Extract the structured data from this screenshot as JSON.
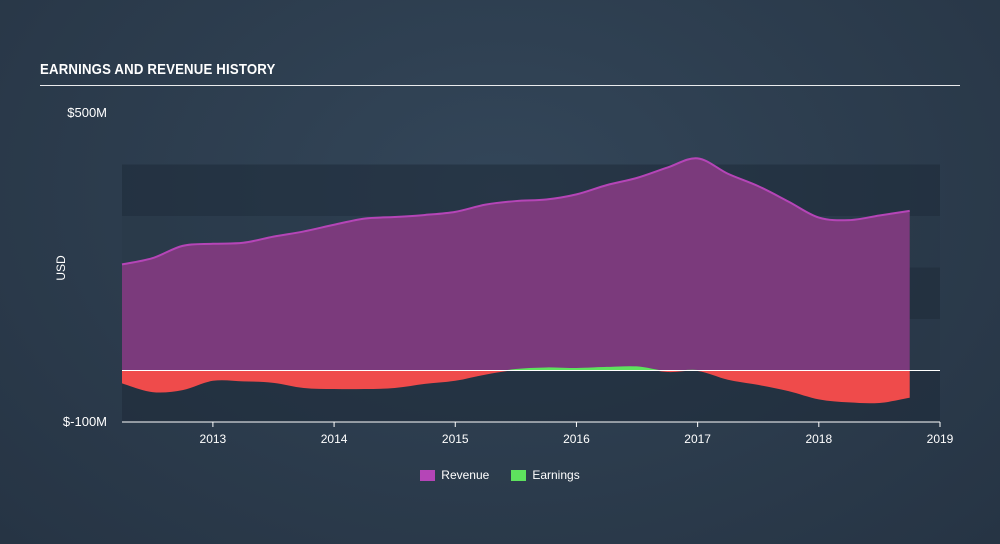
{
  "chart_data": {
    "type": "area",
    "title": "EARNINGS AND REVENUE HISTORY",
    "ylabel": "USD",
    "ylim": [
      -100,
      500
    ],
    "y_tick_labels": [
      "$500M",
      "$-100M"
    ],
    "x_ticks": [
      2013,
      2014,
      2015,
      2016,
      2017,
      2018,
      2019
    ],
    "xlim": [
      2012.25,
      2019.0
    ],
    "grid": "horizontal bands",
    "legend_position": "bottom-center",
    "colors": {
      "revenue_fill": "#7b3a7c",
      "revenue_line": "#b545b7",
      "earnings_positive": "#5ee25e",
      "earnings_negative": "#ef4b4b",
      "zero_line": "#ffffff"
    },
    "series": [
      {
        "name": "Revenue",
        "x": [
          2012.25,
          2012.5,
          2012.75,
          2013.0,
          2013.25,
          2013.5,
          2013.75,
          2014.0,
          2014.25,
          2014.5,
          2014.75,
          2015.0,
          2015.25,
          2015.5,
          2015.75,
          2016.0,
          2016.25,
          2016.5,
          2016.75,
          2017.0,
          2017.25,
          2017.5,
          2017.75,
          2018.0,
          2018.25,
          2018.5,
          2018.75
        ],
        "values": [
          206,
          218,
          242,
          246,
          248,
          260,
          270,
          283,
          295,
          298,
          302,
          308,
          322,
          329,
          332,
          342,
          360,
          374,
          394,
          412,
          382,
          358,
          328,
          297,
          292,
          301,
          310
        ]
      },
      {
        "name": "Earnings",
        "x": [
          2012.25,
          2012.5,
          2012.75,
          2013.0,
          2013.25,
          2013.5,
          2013.75,
          2014.0,
          2014.25,
          2014.5,
          2014.75,
          2015.0,
          2015.25,
          2015.5,
          2015.75,
          2016.0,
          2016.25,
          2016.5,
          2016.75,
          2017.0,
          2017.25,
          2017.5,
          2017.75,
          2018.0,
          2018.25,
          2018.5,
          2018.75
        ],
        "values": [
          -25,
          -42,
          -38,
          -20,
          -21,
          -24,
          -34,
          -36,
          -36,
          -34,
          -26,
          -20,
          -8,
          1,
          4,
          3,
          5,
          6,
          -3,
          -1,
          -18,
          -28,
          -40,
          -56,
          -62,
          -63,
          -53
        ]
      }
    ]
  }
}
